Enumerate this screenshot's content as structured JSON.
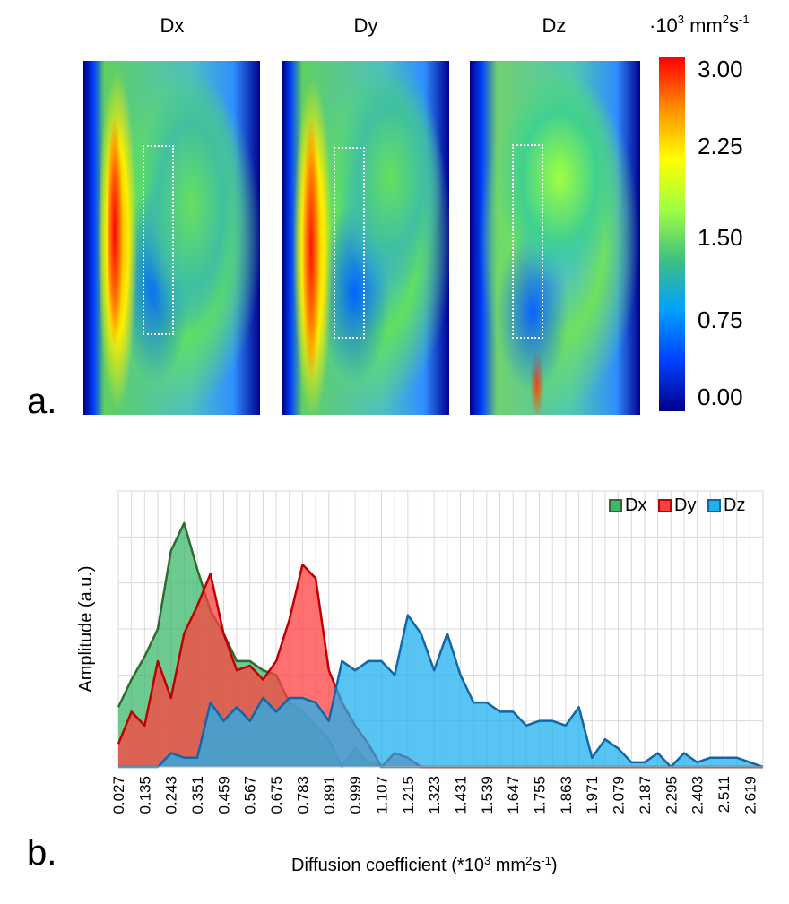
{
  "panel_a": {
    "letter": "a.",
    "map_titles": [
      "Dx",
      "Dy",
      "Dz"
    ],
    "colorbar": {
      "unit_prefix": "·10",
      "unit_exp": "3",
      "unit_mid": " mm",
      "unit_exp2": "2",
      "unit_mid2": "s",
      "unit_exp3": "-1",
      "ticks": [
        "3.00",
        "2.25",
        "1.50",
        "0.75",
        "0.00"
      ],
      "colors": [
        "#ff0000",
        "#ff8c00",
        "#ffff00",
        "#a0ff40",
        "#40c080",
        "#00a0ff",
        "#0040ff",
        "#00008b"
      ]
    }
  },
  "panel_b": {
    "letter": "b.",
    "xlabel_main": "Diffusion coefficient (*10",
    "xlabel_exp": "3",
    "xlabel_mid": " mm",
    "xlabel_exp2": "2",
    "xlabel_end": "s",
    "xlabel_exp3": "-1",
    "xlabel_close": ")"
  },
  "chart_data": {
    "type": "area",
    "ylabel": "Amplitude (a.u.)",
    "xlabel": "Diffusion coefficient (*10³ mm²s⁻¹)",
    "x_tick_labels": [
      "0.027",
      "0.135",
      "0.243",
      "0.351",
      "0.459",
      "0.567",
      "0.675",
      "0.783",
      "0.891",
      "0.999",
      "1.107",
      "1.215",
      "1.323",
      "1.431",
      "1.539",
      "1.647",
      "1.755",
      "1.863",
      "1.971",
      "2.079",
      "2.187",
      "2.295",
      "2.403",
      "2.511",
      "2.619"
    ],
    "x_start": 0.027,
    "x_step": 0.054,
    "ylim": [
      0,
      6
    ],
    "grid": true,
    "legend_position": "top-right",
    "series": [
      {
        "name": "Dx",
        "fill": "#3cb86b",
        "stroke": "#2f6b2f",
        "values": [
          1.3,
          1.9,
          2.4,
          3.0,
          4.7,
          5.3,
          4.3,
          3.4,
          2.9,
          2.3,
          2.3,
          2.1,
          2.0,
          1.4,
          1.2,
          0.9,
          0.6,
          0.0,
          0.4,
          0.1,
          0.0,
          0.0,
          0.0,
          0.0,
          0.0,
          0.0,
          0.0,
          0.0,
          0.0,
          0.0,
          0.0,
          0.0,
          0.0,
          0.0,
          0.0,
          0.0,
          0.0,
          0.0,
          0.0,
          0.0,
          0.0,
          0.0,
          0.0,
          0.0,
          0.0,
          0.0,
          0.0,
          0.0,
          0.0,
          0.0
        ]
      },
      {
        "name": "Dy",
        "fill": "#ff4040",
        "stroke": "#c00000",
        "values": [
          0.5,
          1.2,
          0.9,
          2.3,
          1.5,
          2.9,
          3.5,
          4.2,
          2.9,
          2.1,
          2.2,
          1.9,
          2.3,
          3.2,
          4.4,
          4.1,
          2.1,
          1.4,
          0.9,
          0.5,
          0.0,
          0.3,
          0.2,
          0.0,
          0.0,
          0.0,
          0.0,
          0.0,
          0.0,
          0.0,
          0.0,
          0.0,
          0.0,
          0.0,
          0.0,
          0.0,
          0.0,
          0.0,
          0.0,
          0.0,
          0.0,
          0.0,
          0.0,
          0.0,
          0.0,
          0.0,
          0.0,
          0.0,
          0.0,
          0.0
        ]
      },
      {
        "name": "Dz",
        "fill": "#1fb0ef",
        "stroke": "#1166a8",
        "values": [
          0.0,
          0.0,
          0.0,
          0.0,
          0.3,
          0.2,
          0.2,
          1.4,
          1.0,
          1.3,
          1.0,
          1.5,
          1.2,
          1.5,
          1.5,
          1.4,
          1.0,
          2.3,
          2.1,
          2.3,
          2.3,
          2.0,
          3.3,
          2.9,
          2.1,
          2.9,
          2.0,
          1.4,
          1.4,
          1.2,
          1.2,
          0.9,
          1.0,
          1.0,
          0.9,
          1.3,
          0.2,
          0.6,
          0.4,
          0.1,
          0.1,
          0.3,
          0.0,
          0.3,
          0.1,
          0.2,
          0.2,
          0.2,
          0.1,
          0.0
        ]
      }
    ]
  }
}
